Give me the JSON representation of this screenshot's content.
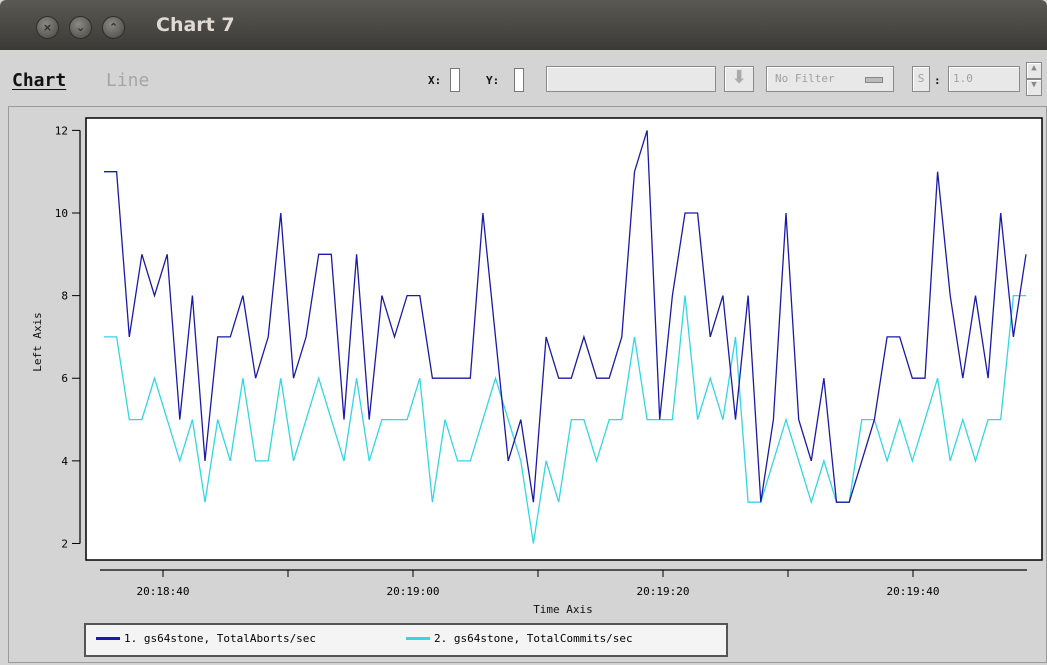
{
  "window": {
    "title": "Chart 7"
  },
  "toolbar": {
    "menu_chart": "Chart",
    "menu_line": "Line",
    "x_label": "X:",
    "y_label": "Y:",
    "filter_value": "No Filter",
    "s_label": "S",
    "colon": ":",
    "step_value": "1.0"
  },
  "colors": {
    "series1": "#1a1aa6",
    "series2": "#33d6e6",
    "plot_bg": "#ffffff",
    "window_bg": "#d4d4d4"
  },
  "chart_data": {
    "type": "line",
    "xlabel": "Time Axis",
    "ylabel": "Left Axis",
    "ylim": [
      1.6,
      12.3
    ],
    "yticks": [
      2,
      4,
      6,
      8,
      10,
      12
    ],
    "xticks": [
      "20:18:40",
      "20:19:00",
      "20:19:20",
      "20:19:40"
    ],
    "series": [
      {
        "name": "1. gs64stone, TotalAborts/sec",
        "values": [
          11,
          11,
          7,
          9,
          8,
          9,
          5,
          8,
          4,
          7,
          7,
          8,
          6,
          7,
          10,
          6,
          7,
          9,
          9,
          5,
          9,
          5,
          8,
          7,
          8,
          8,
          6,
          6,
          6,
          6,
          10,
          7,
          4,
          5,
          3,
          7,
          6,
          6,
          7,
          6,
          6,
          7,
          11,
          12,
          5,
          8,
          10,
          10,
          7,
          8,
          5,
          8,
          3,
          5,
          10,
          5,
          4,
          6,
          3,
          3,
          4,
          5,
          7,
          7,
          6,
          6,
          11,
          8,
          6,
          8,
          6,
          10,
          7,
          9
        ]
      },
      {
        "name": "2. gs64stone, TotalCommits/sec",
        "values": [
          7,
          7,
          5,
          5,
          6,
          5,
          4,
          5,
          3,
          5,
          4,
          6,
          4,
          4,
          6,
          4,
          5,
          6,
          5,
          4,
          6,
          4,
          5,
          5,
          5,
          6,
          3,
          5,
          4,
          4,
          5,
          6,
          5,
          4,
          2,
          4,
          3,
          5,
          5,
          4,
          5,
          5,
          7,
          5,
          5,
          5,
          8,
          5,
          6,
          5,
          7,
          3,
          3,
          4,
          5,
          4,
          3,
          4,
          3,
          3,
          5,
          5,
          4,
          5,
          4,
          5,
          6,
          4,
          5,
          4,
          5,
          5,
          8,
          8
        ]
      }
    ]
  }
}
